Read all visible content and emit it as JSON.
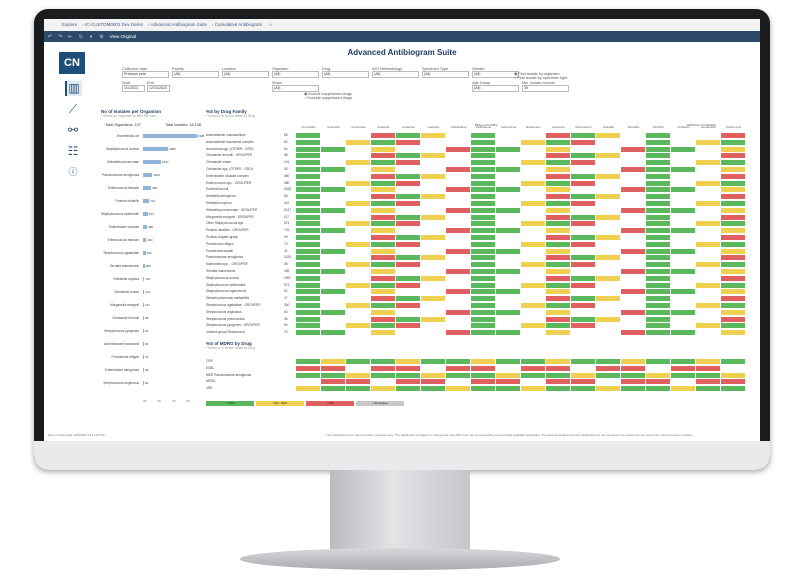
{
  "app": {
    "title": "Advanced Antibiogram Suite",
    "logo": "CN",
    "breadcrumb": [
      "Explore",
      "IC-CUSTOM0001 Dev Demo",
      "Advanced Antibiogram Suite",
      "Cumulative Antibiogram"
    ],
    "view_original": "View Original"
  },
  "toolbar_icons": [
    "undo-icon",
    "redo-icon",
    "revert-icon",
    "refresh-icon",
    "pause-icon",
    "gear-icon"
  ],
  "filters": [
    {
      "label": "Collection date",
      "value": "Previous year"
    },
    {
      "label": "Facility",
      "value": "(All)"
    },
    {
      "label": "Location",
      "value": "(All)"
    },
    {
      "label": "Organism",
      "value": "(All)"
    },
    {
      "label": "Drug",
      "value": "(All)"
    },
    {
      "label": "AST Methodology",
      "value": "(All)"
    },
    {
      "label": "Specimen Type",
      "value": "(All)"
    },
    {
      "label": "Gender",
      "value": "(All)"
    },
    {
      "label": "Start",
      "value": "1/1/2023"
    },
    {
      "label": "End",
      "value": "12/31/2023"
    },
    {
      "label": "Strain",
      "value": "(All)"
    },
    {
      "label": "Age Group",
      "value": "(All)"
    },
    {
      "label": "Min. isolate number",
      "value": "30"
    }
  ],
  "options": {
    "include_suppressed": "Include suppressed drugs",
    "exclude_suppressed": "Exclude suppressed drugs",
    "first_isolate": "First isolate by organism",
    "first_isolate_type": "First isolate by specimen type"
  },
  "nav": [
    "antibiogram-icon",
    "trend-icon",
    "network-icon",
    "table-icon",
    "info-icon"
  ],
  "left_panel": {
    "title": "No of Isolates per Organism",
    "subtitle": "* Select an Organism to filter the view",
    "total_organisms": "Total Organisms: 137",
    "total_isolates": "Total Isolates: 18,198",
    "axis": [
      "0K",
      "2K",
      "4K",
      "6K"
    ]
  },
  "chart_data": {
    "type": "bar",
    "title": "No of Isolates per Organism",
    "categories": [
      "Escherichia coli",
      "Staphylococcus aureus",
      "Klebsiella pneumoniae",
      "Pseudomonas aeruginosa",
      "Enterococcus faecalis",
      "Proteus mirabilis",
      "Staphylococcus epidermidis",
      "Enterobacter cloacae",
      "Enterococcus faecium",
      "Streptococcus agalactiae",
      "Serratia marcescens",
      "Klebsiella oxytoca",
      "Citrobacter koseri",
      "Morganella morganii",
      "Citrobacter freundii",
      "Streptococcus pyogenes",
      "Acinetobacter baumannii",
      "Providencia rettgeri",
      "Enterobacter aerogenes",
      "Streptococcus anginosus"
    ],
    "values": [
      6328,
      2987,
      2147,
      1105,
      980,
      731,
      574,
      480,
      400,
      300,
      189,
      167,
      141,
      117,
      98,
      94,
      82,
      73,
      66,
      60
    ],
    "xlim": [
      0,
      6500
    ]
  },
  "main_panel": {
    "title": "%S by Drug Family",
    "subtitle": "* Select a % to see detail by Drug",
    "group_header": "BETA-LACTAMS",
    "group_header2": "AMINOGLYCOSIDES",
    "drugs": [
      "Amoxicillin",
      "Ampicillin",
      "Aztreonam",
      "Cefazolin",
      "Cefepime",
      "Cefoxitin",
      "Ceftazidime",
      "Ceftriaxone",
      "Cefuroxime",
      "Ertapenem",
      "Imipenem",
      "Meropenem",
      "Oxacillin",
      "Penicillin",
      "Pip/Tazo",
      "Amikacin",
      "Gentamicin",
      "Tobramycin"
    ],
    "rows": [
      {
        "name": "Acinetobacter calcoaceticus",
        "n": "65"
      },
      {
        "name": "Acinetobacter baumannii complex",
        "n": "82"
      },
      {
        "name": "Aeromonas spp. (OTHER - GRO)",
        "n": "54"
      },
      {
        "name": "Citrobacter freundii - GROUPER",
        "n": "98"
      },
      {
        "name": "Citrobacter koseri",
        "n": "141"
      },
      {
        "name": "Citrobacter spp. (OTHER - GRO)",
        "n": "45"
      },
      {
        "name": "Enterobacter cloacae complex",
        "n": "480"
      },
      {
        "name": "Enterococcus spp. - GROUPER",
        "n": "980"
      },
      {
        "name": "Escherichia coli",
        "n": "6328"
      },
      {
        "name": "Klebsiella aerogenes",
        "n": "66"
      },
      {
        "name": "Klebsiella oxytoca",
        "n": "167"
      },
      {
        "name": "Klebsiella pneumoniae - GROUPER",
        "n": "2147"
      },
      {
        "name": "Morganella morganii - GROUPER",
        "n": "117"
      },
      {
        "name": "Other Staphylococcus spp.",
        "n": "574"
      },
      {
        "name": "Proteus mirabilis - GROUPER",
        "n": "731"
      },
      {
        "name": "Proteus vulgaris group",
        "n": "49"
      },
      {
        "name": "Providencia rettgeri",
        "n": "73"
      },
      {
        "name": "Providencia stuartii",
        "n": "41"
      },
      {
        "name": "Pseudomonas aeruginosa",
        "n": "1105"
      },
      {
        "name": "Salmonella spp. - GROUPER",
        "n": "38"
      },
      {
        "name": "Serratia marcescens",
        "n": "189"
      },
      {
        "name": "Staphylococcus aureus",
        "n": "2987"
      },
      {
        "name": "Staphylococcus epidermidis",
        "n": "574"
      },
      {
        "name": "Staphylococcus lugdunensis",
        "n": "52"
      },
      {
        "name": "Stenotrophomonas maltophilia",
        "n": "47"
      },
      {
        "name": "Streptococcus agalactiae - GROUPER",
        "n": "300"
      },
      {
        "name": "Streptococcus anginosus",
        "n": "60"
      },
      {
        "name": "Streptococcus pneumoniae",
        "n": "36"
      },
      {
        "name": "Streptococcus pyogenes - GROUPER",
        "n": "94"
      },
      {
        "name": "Viridans group Streptococci",
        "n": "70"
      }
    ]
  },
  "mrsa_panel": {
    "title": "%S of MDRO by Drug",
    "subtitle": "* Select a % to see detail by Drug",
    "rows": [
      "CRE",
      "ESBL",
      "MDR Pseudomonas aeruginosa",
      "MRSA",
      "VRE"
    ],
    "legend": [
      ">=90%",
      "70% - 89%",
      "< 70%",
      "< 30 isolates"
    ]
  },
  "footer": {
    "left": "Date of Data Pulls: 9/26/2024 11:11:39 PM",
    "right": "This dashboard is for demonstration purposes only. The dashboard is subject to change and may differ from the corresponding commercially available dashboard. The data associated with this dashboard are not intended to be relied upon as part of any clinical decision making."
  },
  "colors": {
    "green": "#5cb85c",
    "yellow": "#f0d050",
    "red": "#e06060",
    "grey": "#c8c8c8",
    "navy": "#1f4e79",
    "bar": "#8fb4d9"
  }
}
